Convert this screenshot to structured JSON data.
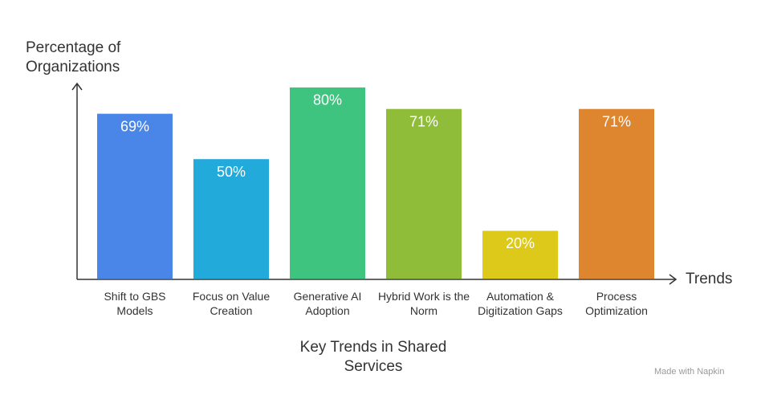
{
  "chart_data": {
    "type": "bar",
    "title": "Key Trends in Shared Services",
    "y_label": "Percentage of Organizations",
    "x_label": "Trends",
    "categories": [
      "Shift to GBS Models",
      "Focus on Value Creation",
      "Generative AI Adoption",
      "Hybrid Work is the Norm",
      "Automation & Digitization Gaps",
      "Process Optimization"
    ],
    "values": [
      69,
      50,
      80,
      71,
      20,
      71
    ],
    "value_labels": [
      "69%",
      "50%",
      "80%",
      "71%",
      "20%",
      "71%"
    ],
    "colors": [
      "#4a86e8",
      "#22aadb",
      "#3ec47f",
      "#8fbd3a",
      "#dcc91a",
      "#de8530"
    ],
    "ylim": [
      0,
      83
    ],
    "watermark": "Made with Napkin"
  }
}
